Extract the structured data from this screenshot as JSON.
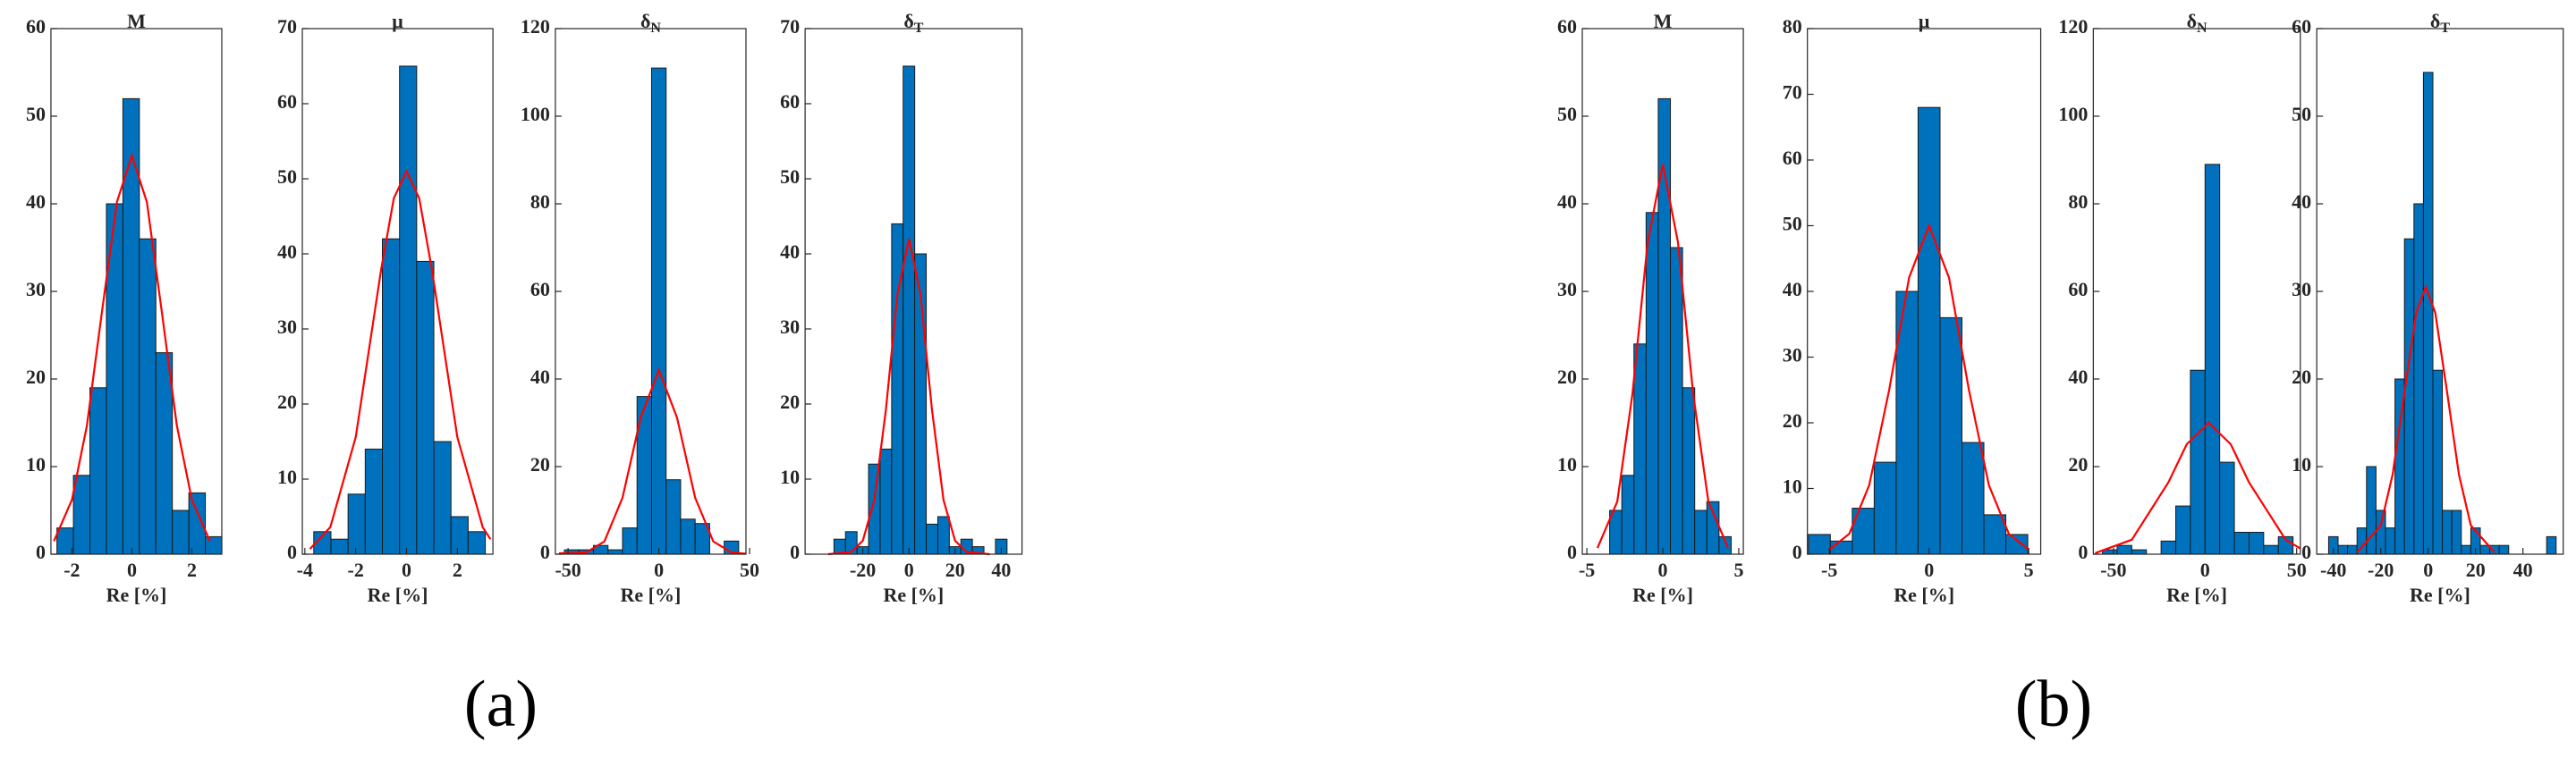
{
  "chart_data": [
    {
      "type": "histogram",
      "title": "M",
      "xlabel": "Re [%]",
      "color": "#0072bd",
      "bins": [
        -2.5,
        -1.95,
        -1.4,
        -0.85,
        -0.3,
        0.25,
        0.8,
        1.35,
        1.9,
        2.45,
        3.0
      ],
      "values": [
        3,
        9,
        19,
        40,
        52,
        36,
        23,
        5,
        7,
        2
      ],
      "fit": {
        "color": "#ff0000",
        "x": [
          -2.6,
          -2,
          -1.5,
          -1,
          -0.5,
          0,
          0.5,
          1,
          1.5,
          2,
          2.6
        ],
        "values": [
          1.5,
          6.2,
          14.7,
          27.6,
          40.2,
          45.5,
          40.2,
          27.6,
          14.7,
          6.2,
          1.5
        ]
      },
      "xlim": [
        -2.7,
        3.0
      ],
      "xticks": [
        -2,
        0,
        2
      ],
      "ylim": [
        0,
        60
      ],
      "yticks": [
        0,
        10,
        20,
        30,
        40,
        50,
        60
      ]
    },
    {
      "type": "histogram",
      "title": "μ",
      "xlabel": "Re [%]",
      "color": "#0072bd",
      "bins": [
        -3.65,
        -2.975,
        -2.3,
        -1.625,
        -0.95,
        -0.275,
        0.4,
        1.075,
        1.75,
        2.425,
        3.1
      ],
      "values": [
        3,
        2,
        8,
        14,
        42,
        65,
        39,
        15,
        5,
        3
      ],
      "fit": {
        "color": "#ff0000",
        "x": [
          -3.8,
          -3,
          -2,
          -1,
          -0.5,
          0,
          0.5,
          1,
          2,
          3,
          3.3
        ],
        "values": [
          0.7,
          3.6,
          15.6,
          37.9,
          47.4,
          51,
          47.4,
          37.9,
          15.6,
          3.6,
          2.0
        ]
      },
      "xlim": [
        -4.1,
        3.4
      ],
      "xticks": [
        -4,
        -2,
        0,
        2
      ],
      "ylim": [
        0,
        70
      ],
      "yticks": [
        0,
        10,
        20,
        30,
        40,
        50,
        60,
        70
      ]
    },
    {
      "type": "histogram",
      "title": "δ",
      "title_sub": "N",
      "xlabel": "Re [%]",
      "color": "#0072bd",
      "bins": [
        -52,
        -44,
        -36,
        -28,
        -20,
        -12,
        -4,
        4,
        12,
        20,
        28,
        36,
        44
      ],
      "values": [
        1,
        1,
        2,
        1,
        6,
        36,
        111,
        17,
        8,
        7,
        0,
        3
      ],
      "fit": {
        "color": "#ff0000",
        "x": [
          -55,
          -40,
          -30,
          -20,
          -10,
          0,
          10,
          20,
          30,
          40,
          48
        ],
        "values": [
          0.2,
          0.4,
          2.9,
          12.9,
          31.2,
          42,
          31.2,
          12.9,
          2.9,
          0.4,
          0.1
        ]
      },
      "xlim": [
        -57,
        48
      ],
      "xticks": [
        -50,
        0,
        50
      ],
      "ylim": [
        0,
        120
      ],
      "yticks": [
        0,
        20,
        40,
        60,
        80,
        100,
        120
      ]
    },
    {
      "type": "histogram",
      "title": "δ",
      "title_sub": "T",
      "xlabel": "Re [%]",
      "color": "#0072bd",
      "bins": [
        -32.5,
        -27.5,
        -22.5,
        -17.5,
        -12.5,
        -7.5,
        -2.5,
        2.5,
        7.5,
        12.5,
        17.5,
        22.5,
        27.5,
        32.5,
        37.5,
        42.5
      ],
      "values": [
        2,
        3,
        1,
        12,
        14,
        44,
        65,
        40,
        4,
        5,
        1,
        2,
        1,
        0,
        2
      ],
      "fit": {
        "color": "#ff0000",
        "x": [
          -35,
          -25,
          -20,
          -15,
          -10,
          -5,
          0,
          5,
          10,
          15,
          20,
          25,
          35
        ],
        "values": [
          0,
          0.3,
          1.8,
          7.2,
          19.2,
          34.6,
          42,
          34.6,
          19.2,
          7.2,
          1.8,
          0.3,
          0
        ]
      },
      "xlim": [
        -45,
        49
      ],
      "xticks": [
        -20,
        0,
        20,
        40
      ],
      "ylim": [
        0,
        70
      ],
      "yticks": [
        0,
        10,
        20,
        30,
        40,
        50,
        60,
        70
      ]
    },
    {
      "type": "histogram",
      "title": "M",
      "xlabel": "Re [%]",
      "color": "#0072bd",
      "bins": [
        -3.5,
        -2.7,
        -1.9,
        -1.1,
        -0.3,
        0.5,
        1.3,
        2.1,
        2.9,
        3.7,
        4.5
      ],
      "values": [
        5,
        9,
        24,
        39,
        52,
        35,
        19,
        5,
        6,
        2
      ],
      "fit": {
        "color": "#ff0000",
        "x": [
          -4.3,
          -3,
          -2,
          -1,
          0,
          1,
          2,
          3,
          4.3
        ],
        "values": [
          0.7,
          6.0,
          18.3,
          35.6,
          44.5,
          35.6,
          18.3,
          6.0,
          0.7
        ]
      },
      "xlim": [
        -5.3,
        5.3
      ],
      "xticks": [
        -5,
        0,
        5
      ],
      "ylim": [
        0,
        60
      ],
      "yticks": [
        0,
        10,
        20,
        30,
        40,
        50,
        60
      ]
    },
    {
      "type": "histogram",
      "title": "μ",
      "xlabel": "Re [%]",
      "color": "#0072bd",
      "bins": [
        -6.05,
        -4.95,
        -3.85,
        -2.75,
        -1.65,
        -0.55,
        0.55,
        1.65,
        2.75,
        3.85,
        4.95
      ],
      "values": [
        3,
        2,
        7,
        14,
        40,
        68,
        36,
        17,
        6,
        3
      ],
      "fit": {
        "color": "#ff0000",
        "x": [
          -5,
          -4,
          -3,
          -2,
          -1,
          0,
          1,
          2,
          3,
          4,
          5
        ],
        "values": [
          0.7,
          3.1,
          10.5,
          25.0,
          42.1,
          50,
          42.1,
          25.0,
          10.5,
          3.1,
          0.7
        ]
      },
      "xlim": [
        -6.1,
        5.6
      ],
      "xticks": [
        -5,
        0,
        5
      ],
      "ylim": [
        0,
        80
      ],
      "yticks": [
        0,
        10,
        20,
        30,
        40,
        50,
        60,
        70,
        80
      ]
    },
    {
      "type": "histogram",
      "title": "δ",
      "title_sub": "N",
      "xlabel": "Re [%]",
      "color": "#0072bd",
      "bins": [
        -56,
        -48,
        -40,
        -32,
        -24,
        -16,
        -8,
        0,
        8,
        16,
        24,
        32,
        40,
        48
      ],
      "values": [
        1,
        2,
        1,
        0,
        3,
        11,
        42,
        89,
        21,
        5,
        5,
        2,
        4
      ],
      "fit": {
        "color": "#ff0000",
        "x": [
          -60,
          -40,
          -20,
          -10,
          2,
          14,
          24,
          44,
          52
        ],
        "values": [
          0.25,
          3.3,
          16.4,
          25.1,
          30,
          25.1,
          16.4,
          3.3,
          1.3
        ]
      },
      "xlim": [
        -61,
        52
      ],
      "xticks": [
        -50,
        0,
        50
      ],
      "ylim": [
        0,
        120
      ],
      "yticks": [
        0,
        20,
        40,
        60,
        80,
        100,
        120
      ]
    },
    {
      "type": "histogram",
      "title": "δ",
      "title_sub": "T",
      "xlabel": "Re [%]",
      "color": "#0072bd",
      "bins": [
        -42,
        -38,
        -34,
        -30,
        -26,
        -22,
        -18,
        -14,
        -10,
        -6,
        -2,
        2,
        6,
        10,
        14,
        18,
        22,
        26,
        30,
        34,
        38,
        42,
        46,
        50,
        54
      ],
      "values": [
        2,
        1,
        1,
        3,
        10,
        5,
        3,
        20,
        36,
        40,
        55,
        21,
        5,
        5,
        1,
        3,
        1,
        1,
        1,
        0,
        0,
        0,
        0,
        2
      ],
      "fit": {
        "color": "#ff0000",
        "x": [
          -30,
          -20,
          -15,
          -10,
          -5,
          -1,
          3,
          8,
          13,
          18,
          28
        ],
        "values": [
          0.2,
          3.3,
          9.1,
          18.5,
          27.6,
          30.5,
          27.6,
          18.5,
          9.1,
          3.3,
          0.2
        ]
      },
      "xlim": [
        -47,
        57
      ],
      "xticks": [
        -40,
        -20,
        0,
        20,
        40
      ],
      "ylim": [
        0,
        60
      ],
      "yticks": [
        0,
        10,
        20,
        30,
        40,
        50,
        60
      ]
    }
  ],
  "panel_labels": [
    "(a)",
    "(b)"
  ]
}
